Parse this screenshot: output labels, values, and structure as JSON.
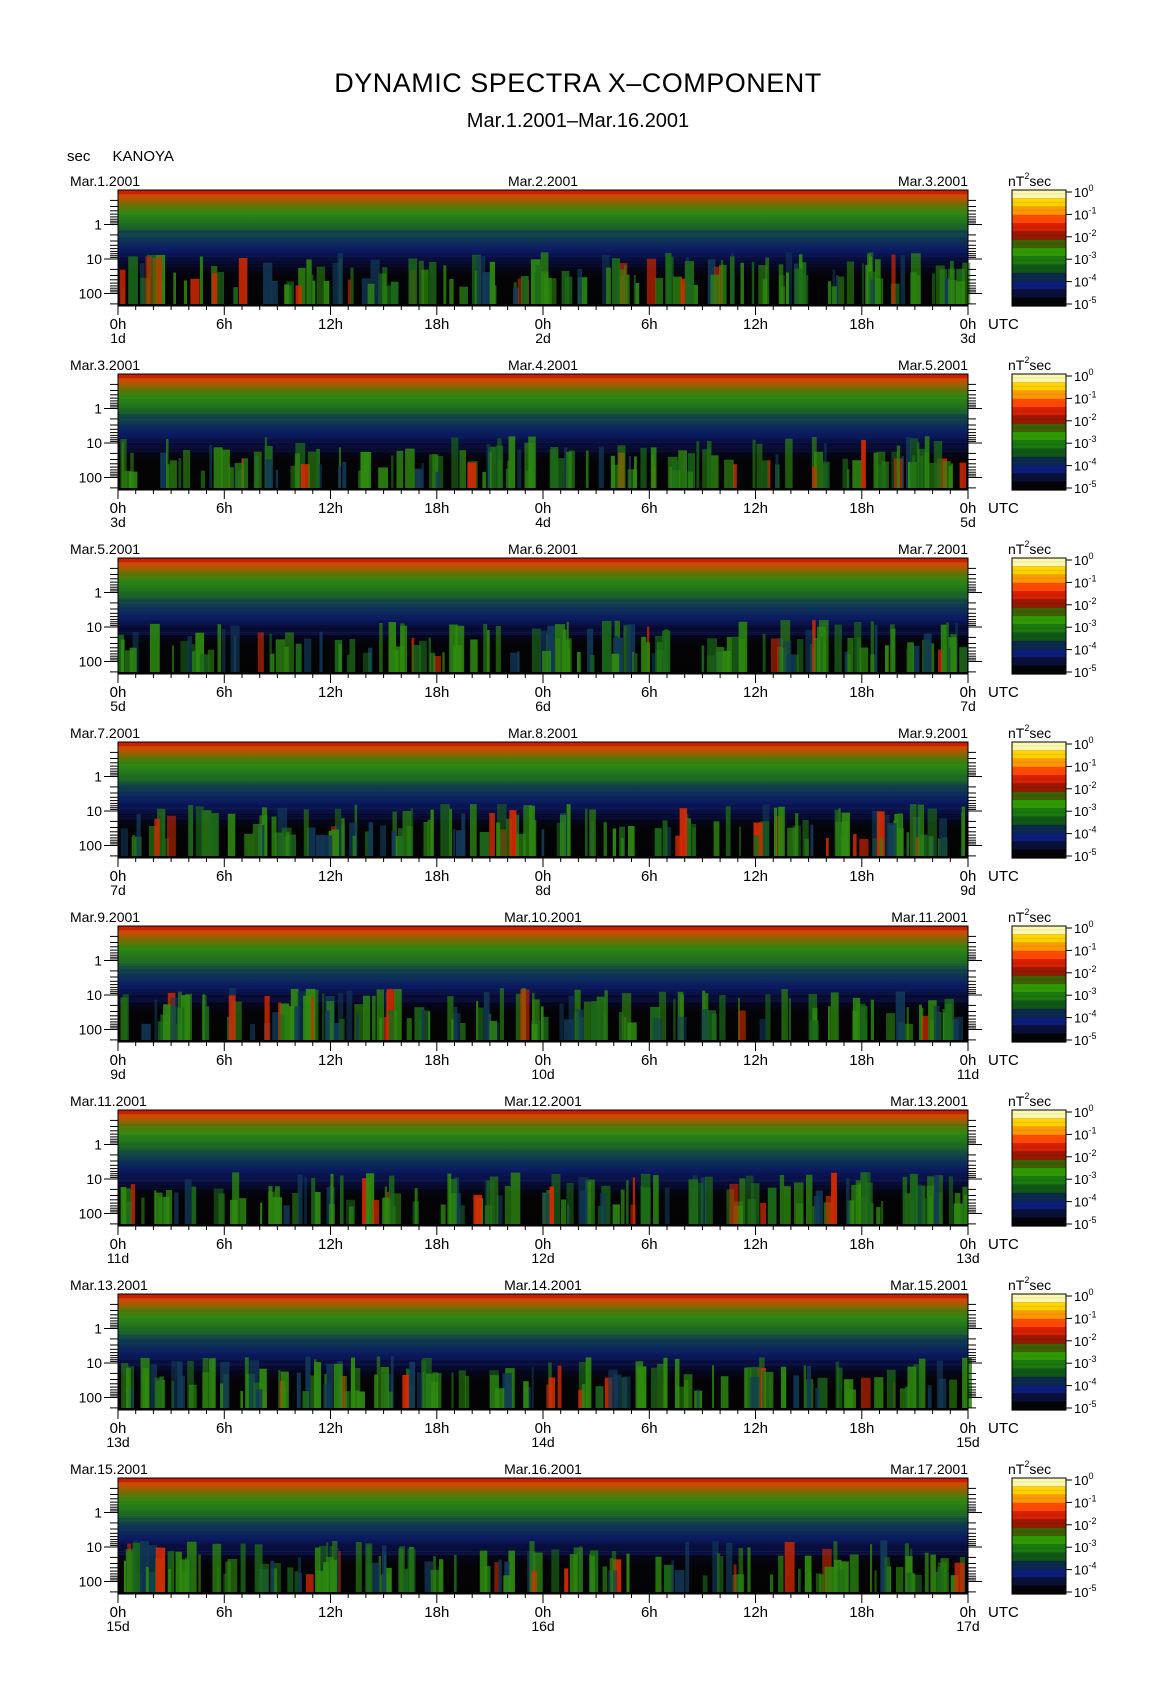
{
  "header": {
    "title": "DYNAMIC SPECTRA X–COMPONENT",
    "subtitle": "Mar.1.2001–Mar.16.2001",
    "yunit": "sec",
    "station": "KANOYA"
  },
  "colorbar": {
    "unit_base": "nT",
    "unit_exp": "2",
    "unit_tail": "sec",
    "labels": [
      {
        "base": "10",
        "exp": "0"
      },
      {
        "base": "10",
        "exp": "-1"
      },
      {
        "base": "10",
        "exp": "-2"
      },
      {
        "base": "10",
        "exp": "-3"
      },
      {
        "base": "10",
        "exp": "-4"
      },
      {
        "base": "10",
        "exp": "-5"
      }
    ],
    "colors": [
      "#fff7b0",
      "#ffd200",
      "#ff9a00",
      "#ff4a00",
      "#d82000",
      "#9a1800",
      "#3e5e00",
      "#2e9a00",
      "#1a7a10",
      "#0f5818",
      "#0c2a4a",
      "#0c1e78",
      "#0a0f38",
      "#050508"
    ]
  },
  "chart_data": {
    "type": "heatmap",
    "ylabel": "sec",
    "y_ticks": [
      "1",
      "10",
      "100"
    ],
    "x_ticks": [
      "0h",
      "6h",
      "12h",
      "18h",
      "0h",
      "6h",
      "12h",
      "18h",
      "0h"
    ],
    "x_unit": "UTC",
    "colorbar_range": [
      "10^0",
      "10^-5"
    ],
    "panels": [
      {
        "left_date": "Mar.1.2001",
        "mid_date": "Mar.2.2001",
        "right_date": "Mar.3.2001",
        "days": [
          "1d",
          "2d",
          "3d"
        ]
      },
      {
        "left_date": "Mar.3.2001",
        "mid_date": "Mar.4.2001",
        "right_date": "Mar.5.2001",
        "days": [
          "3d",
          "4d",
          "5d"
        ]
      },
      {
        "left_date": "Mar.5.2001",
        "mid_date": "Mar.6.2001",
        "right_date": "Mar.7.2001",
        "days": [
          "5d",
          "6d",
          "7d"
        ]
      },
      {
        "left_date": "Mar.7.2001",
        "mid_date": "Mar.8.2001",
        "right_date": "Mar.9.2001",
        "days": [
          "7d",
          "8d",
          "9d"
        ]
      },
      {
        "left_date": "Mar.9.2001",
        "mid_date": "Mar.10.2001",
        "right_date": "Mar.11.2001",
        "days": [
          "9d",
          "10d",
          "11d"
        ]
      },
      {
        "left_date": "Mar.11.2001",
        "mid_date": "Mar.12.2001",
        "right_date": "Mar.13.2001",
        "days": [
          "11d",
          "12d",
          "13d"
        ]
      },
      {
        "left_date": "Mar.13.2001",
        "mid_date": "Mar.14.2001",
        "right_date": "Mar.15.2001",
        "days": [
          "13d",
          "14d",
          "15d"
        ]
      },
      {
        "left_date": "Mar.15.2001",
        "mid_date": "Mar.16.2001",
        "right_date": "Mar.17.2001",
        "days": [
          "15d",
          "16d",
          "17d"
        ]
      }
    ]
  }
}
